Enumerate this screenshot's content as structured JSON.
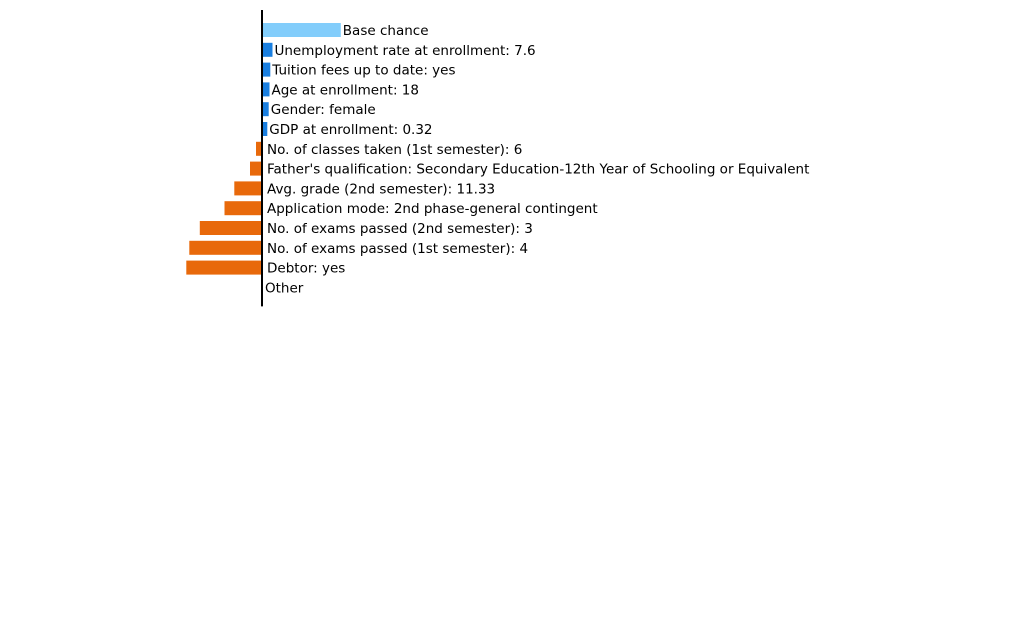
{
  "chart_data": {
    "type": "bar",
    "orientation": "horizontal",
    "title": "",
    "xlabel": "",
    "ylabel": "",
    "grid": false,
    "legend": "none",
    "colors": {
      "base": "#82cdfb",
      "positive": "#1a7fe0",
      "negative": "#e8690b",
      "axis": "#000000"
    },
    "bars": [
      {
        "label": "Base chance",
        "value": 0.105,
        "kind": "base"
      },
      {
        "label": "Unemployment rate at enrollment: 7.6",
        "value": 0.014,
        "kind": "positive"
      },
      {
        "label": "Tuition fees up to date: yes",
        "value": 0.011,
        "kind": "positive"
      },
      {
        "label": "Age at enrollment: 18",
        "value": 0.01,
        "kind": "positive"
      },
      {
        "label": "Gender: female",
        "value": 0.009,
        "kind": "positive"
      },
      {
        "label": "GDP at enrollment: 0.32",
        "value": 0.007,
        "kind": "positive"
      },
      {
        "label": "No. of classes taken (1st semester): 6",
        "value": -0.008,
        "kind": "negative"
      },
      {
        "label": "Father's qualification: Secondary Education-12th Year of Schooling or Equivalent",
        "value": -0.016,
        "kind": "negative"
      },
      {
        "label": "Avg. grade (2nd semester): 11.33",
        "value": -0.037,
        "kind": "negative"
      },
      {
        "label": "Application mode: 2nd phase-general contingent",
        "value": -0.05,
        "kind": "negative"
      },
      {
        "label": "No. of exams passed (2nd semester): 3",
        "value": -0.083,
        "kind": "negative"
      },
      {
        "label": "No. of exams passed (1st semester): 4",
        "value": -0.097,
        "kind": "negative"
      },
      {
        "label": "Debtor: yes",
        "value": -0.101,
        "kind": "negative"
      },
      {
        "label": "Other",
        "value": 0,
        "kind": "other"
      }
    ]
  }
}
